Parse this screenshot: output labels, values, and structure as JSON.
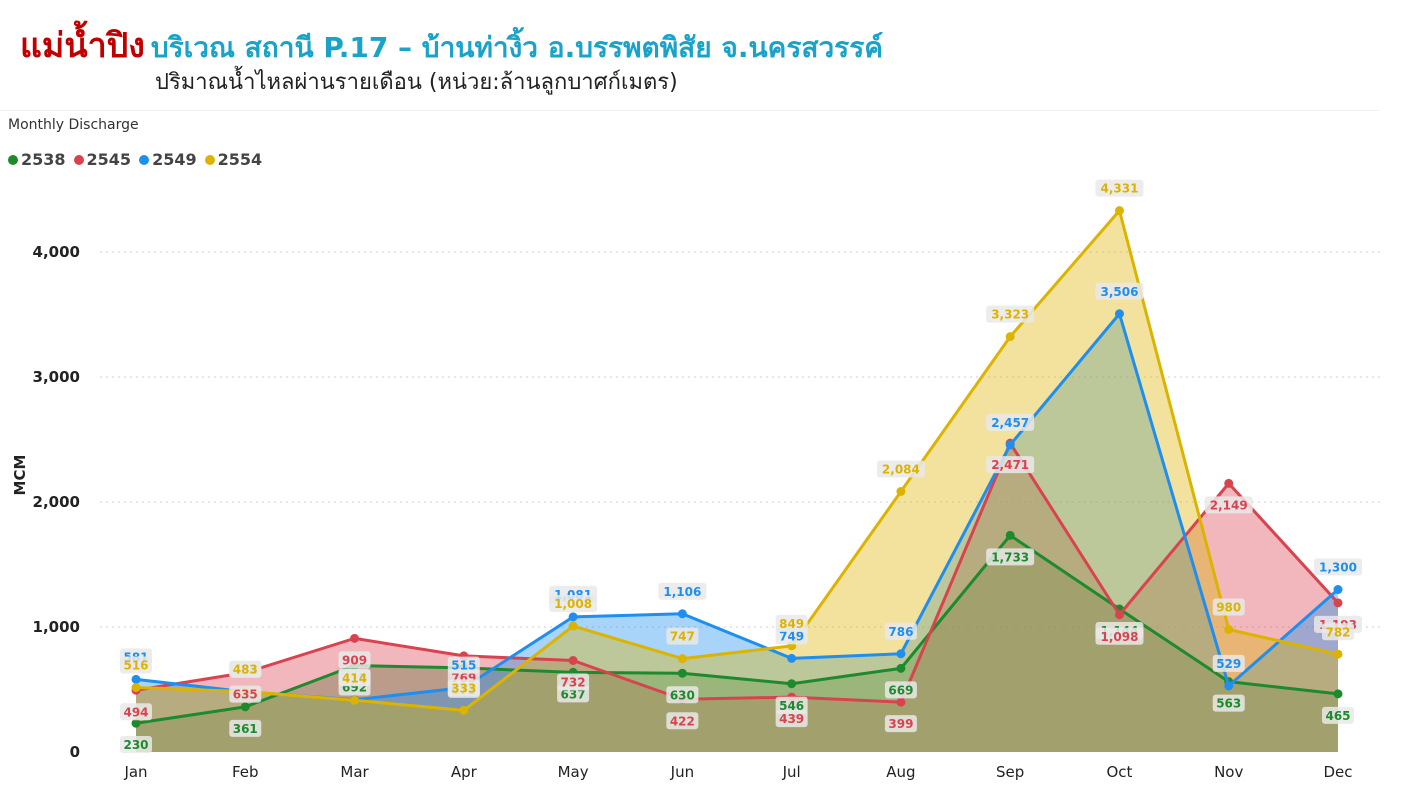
{
  "header": {
    "title_main": "แม่น้ำปิง",
    "title_location": "บริเวณ สถานี P.17 – บ้านท่างิ้ว อ.บรรพตพิสัย จ.นครสวรรค์",
    "subtitle": "ปริมาณน้ำไหลผ่านรายเดือน (หน่วย:ล้านลูกบาศก์เมตร)"
  },
  "visual_title": "Monthly Discharge",
  "colors": {
    "2538": "#1e8a2e",
    "2545": "#d9434f",
    "2549": "#1e8fef",
    "2554": "#dcb400"
  },
  "chart_data": {
    "type": "area",
    "title": "Monthly Discharge",
    "xlabel": "",
    "ylabel": "MCM",
    "categories": [
      "Jan",
      "Feb",
      "Mar",
      "Apr",
      "May",
      "Jun",
      "Jul",
      "Aug",
      "Sep",
      "Oct",
      "Nov",
      "Dec"
    ],
    "ylim": [
      0,
      4400
    ],
    "yticks": [
      0,
      1000,
      2000,
      3000,
      4000
    ],
    "ytick_labels": [
      "0",
      "1,000",
      "2,000",
      "3,000",
      "4,000"
    ],
    "grid": true,
    "legend_position": "top-left",
    "series": [
      {
        "name": "2538",
        "values": [
          230,
          361,
          692,
          673,
          637,
          630,
          546,
          669,
          1733,
          1144,
          563,
          465
        ]
      },
      {
        "name": "2545",
        "values": [
          494,
          635,
          909,
          769,
          732,
          422,
          439,
          399,
          2471,
          1098,
          2149,
          1193
        ]
      },
      {
        "name": "2549",
        "values": [
          581,
          482,
          418,
          515,
          1081,
          1106,
          749,
          786,
          2457,
          3506,
          529,
          1300
        ]
      },
      {
        "name": "2554",
        "values": [
          516,
          483,
          414,
          333,
          1008,
          747,
          849,
          2084,
          3323,
          4331,
          980,
          782
        ]
      }
    ]
  }
}
